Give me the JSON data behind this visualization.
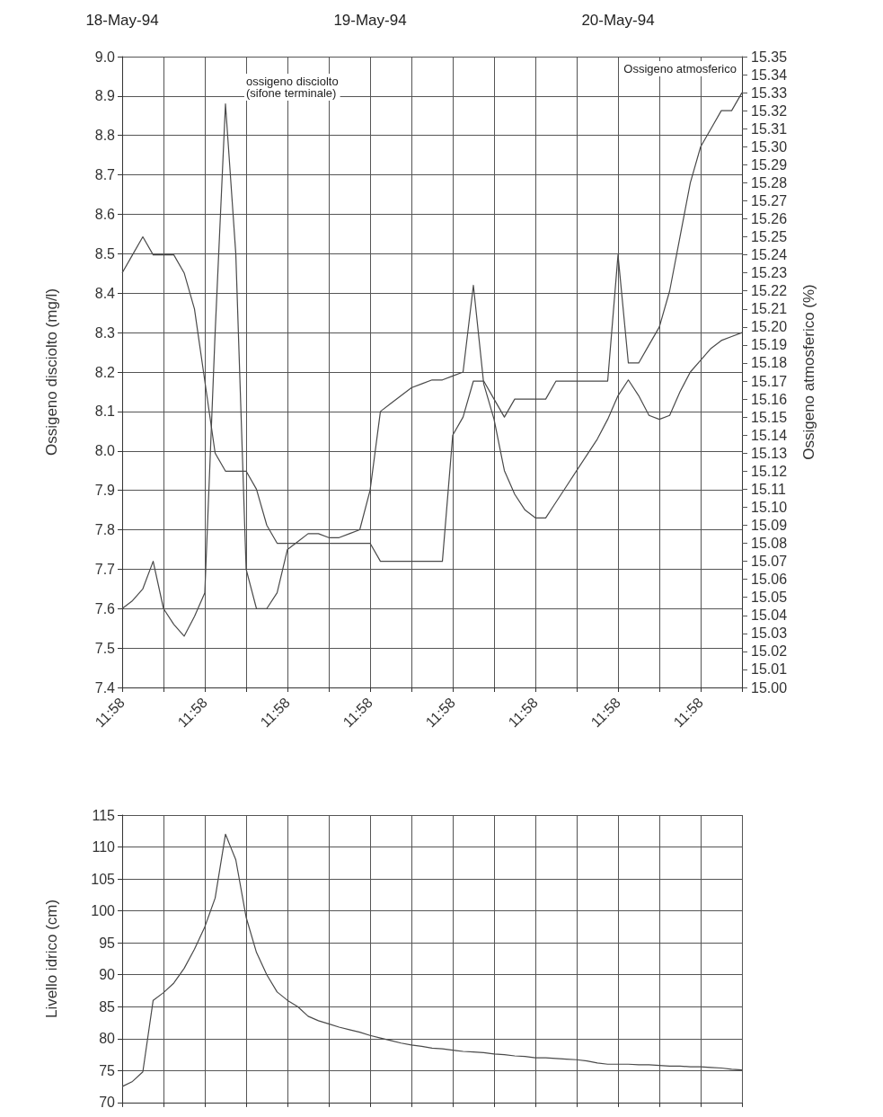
{
  "chart_data": [
    {
      "type": "line",
      "ylabel": "Ossigeno disciolto (mg/l)",
      "y2label": "Ossigeno atmosferico (%)",
      "marker": "none",
      "grid": true,
      "annotations": [
        "ossigeno disciolto\n(sifone terminale)",
        "Ossigeno atmosferico",
        "18-May-94",
        "19-May-94",
        "20-May-94"
      ],
      "categories": [
        "11:58",
        null,
        null,
        null,
        null,
        null,
        null,
        null,
        "11:58",
        null,
        null,
        null,
        null,
        null,
        null,
        null,
        "11:58",
        null,
        null,
        null,
        null,
        null,
        null,
        null,
        "11:58",
        null,
        null,
        null,
        null,
        null,
        null,
        null,
        "11:58",
        null,
        null,
        null,
        null,
        null,
        null,
        null,
        "11:58",
        null,
        null,
        null,
        null,
        null,
        null,
        null,
        "11:58",
        null,
        null,
        null,
        null,
        null,
        null,
        null,
        "11:58",
        null,
        null,
        null,
        null
      ],
      "ylim": [
        7.4,
        9.0
      ],
      "yticks": [
        7.4,
        7.5,
        7.6,
        7.7,
        7.8,
        7.9,
        {
          "value": 8,
          "label": "8.0"
        },
        8.1,
        8.2,
        8.3,
        8.4,
        8.5,
        8.6,
        8.7,
        8.8,
        8.9,
        {
          "value": 9,
          "label": "9.0"
        }
      ],
      "y2lim": [
        15.0,
        15.35
      ],
      "y2ticks": [
        {
          "value": 15.0,
          "label": "15.00"
        },
        {
          "value": 15.01,
          "label": "15.01"
        },
        {
          "value": 15.02,
          "label": "15.02"
        },
        {
          "value": 15.03,
          "label": "15.03"
        },
        {
          "value": 15.04,
          "label": "15.04"
        },
        {
          "value": 15.05,
          "label": "15.05"
        },
        {
          "value": 15.06,
          "label": "15.06"
        },
        {
          "value": 15.07,
          "label": "15.07"
        },
        {
          "value": 15.08,
          "label": "15.08"
        },
        {
          "value": 15.09,
          "label": "15.09"
        },
        {
          "value": 15.1,
          "label": "15.10"
        },
        {
          "value": 15.11,
          "label": "15.11"
        },
        {
          "value": 15.12,
          "label": "15.12"
        },
        {
          "value": 15.13,
          "label": "15.13"
        },
        {
          "value": 15.14,
          "label": "15.14"
        },
        {
          "value": 15.15,
          "label": "15.15"
        },
        {
          "value": 15.16,
          "label": "15.16"
        },
        {
          "value": 15.17,
          "label": "15.17"
        },
        {
          "value": 15.18,
          "label": "15.18"
        },
        {
          "value": 15.19,
          "label": "15.19"
        },
        {
          "value": 15.2,
          "label": "15.20"
        },
        {
          "value": 15.21,
          "label": "15.21"
        },
        {
          "value": 15.22,
          "label": "15.22"
        },
        {
          "value": 15.23,
          "label": "15.23"
        },
        {
          "value": 15.24,
          "label": "15.24"
        },
        {
          "value": 15.25,
          "label": "15.25"
        },
        {
          "value": 15.26,
          "label": "15.26"
        },
        {
          "value": 15.27,
          "label": "15.27"
        },
        {
          "value": 15.28,
          "label": "15.28"
        },
        {
          "value": 15.29,
          "label": "15.29"
        },
        {
          "value": 15.3,
          "label": "15.30"
        },
        {
          "value": 15.31,
          "label": "15.31"
        },
        {
          "value": 15.32,
          "label": "15.32"
        },
        {
          "value": 15.33,
          "label": "15.33"
        },
        {
          "value": 15.34,
          "label": "15.34"
        },
        {
          "value": 15.35,
          "label": "15.35"
        }
      ],
      "series": [
        {
          "color": "#4a4a4a",
          "values": [
            7.6,
            7.62,
            7.65,
            7.72,
            7.6,
            7.56,
            7.53,
            7.58,
            7.64,
            8.3,
            8.88,
            8.5,
            7.7,
            7.6,
            7.6,
            7.64,
            7.75,
            7.77,
            7.79,
            7.79,
            7.78,
            7.78,
            7.79,
            7.8,
            7.9,
            8.1,
            8.12,
            8.14,
            8.16,
            8.17,
            8.18,
            8.18,
            8.19,
            8.2,
            8.42,
            8.17,
            8.08,
            7.95,
            7.89,
            7.85,
            7.83,
            7.83,
            7.87,
            7.91,
            7.95,
            7.99,
            8.03,
            8.08,
            8.14,
            8.18,
            8.14,
            8.09,
            8.08,
            8.09,
            8.15,
            8.2,
            8.23,
            8.26,
            8.28,
            8.29,
            8.3
          ]
        },
        {
          "color": "#4a4a4a",
          "axis": "y2",
          "values": [
            15.23,
            15.24,
            15.25,
            15.24,
            15.24,
            15.24,
            15.23,
            15.21,
            15.17,
            15.13,
            15.12,
            15.12,
            15.12,
            15.11,
            15.09,
            15.08,
            15.08,
            15.08,
            15.08,
            15.08,
            15.08,
            15.08,
            15.08,
            15.08,
            15.08,
            15.07,
            15.07,
            15.07,
            15.07,
            15.07,
            15.07,
            15.07,
            15.14,
            15.15,
            15.17,
            15.17,
            15.16,
            15.15,
            15.16,
            15.16,
            15.16,
            15.16,
            15.17,
            15.17,
            15.17,
            15.17,
            15.17,
            15.17,
            15.24,
            15.18,
            15.18,
            15.19,
            15.2,
            15.22,
            15.25,
            15.28,
            15.3,
            15.31,
            15.32,
            15.32,
            15.33
          ]
        }
      ]
    },
    {
      "type": "line",
      "ylabel": "Livello idrico (cm)",
      "marker": "none",
      "grid": true,
      "color": "#4a4a4a",
      "categories": [
        null,
        null,
        null,
        null,
        null,
        null,
        null,
        null,
        null,
        null,
        null,
        null,
        null,
        null,
        null,
        null,
        null,
        null,
        null,
        null,
        null,
        null,
        null,
        null,
        null,
        null,
        null,
        null,
        null,
        null,
        null,
        null,
        null,
        null,
        null,
        null,
        null,
        null,
        null,
        null,
        null,
        null,
        null,
        null,
        null,
        null,
        null,
        null,
        null,
        null,
        null,
        null,
        null,
        null,
        null,
        null,
        null,
        null,
        null,
        null,
        null
      ],
      "ylim": [
        70,
        115
      ],
      "yticks": [
        70,
        75,
        80,
        85,
        90,
        95,
        100,
        105,
        110,
        115
      ],
      "values": [
        72.5,
        73.3,
        74.8,
        86,
        87.2,
        88.7,
        91,
        94,
        97.5,
        102,
        112,
        108,
        99,
        93.5,
        90,
        87.3,
        86,
        85,
        83.5,
        82.8,
        82.3,
        81.8,
        81.4,
        81,
        80.5,
        80.1,
        79.7,
        79.3,
        79,
        78.8,
        78.5,
        78.4,
        78.2,
        78,
        77.9,
        77.8,
        77.6,
        77.5,
        77.3,
        77.2,
        77,
        77,
        76.9,
        76.8,
        76.7,
        76.5,
        76.2,
        76,
        76,
        76,
        75.9,
        75.9,
        75.8,
        75.7,
        75.7,
        75.6,
        75.6,
        75.5,
        75.4,
        75.2,
        75.1
      ]
    }
  ]
}
